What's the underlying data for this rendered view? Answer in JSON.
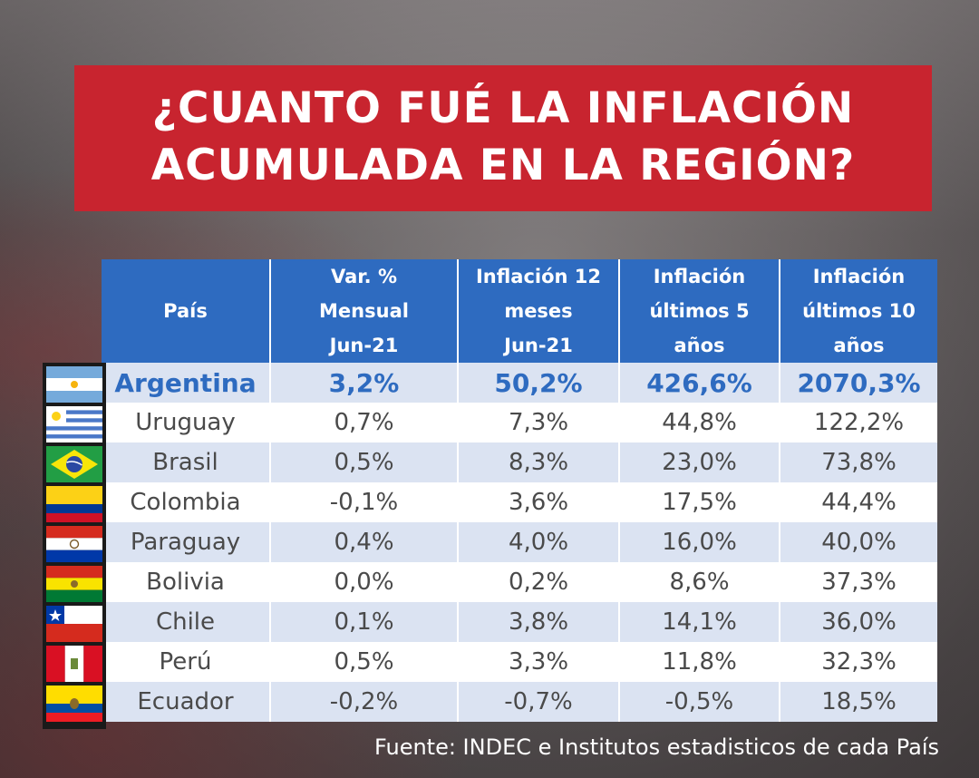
{
  "title": {
    "line1": "¿CUANTO FUÉ LA INFLACIÓN",
    "line2": "ACUMULADA EN LA REGIÓN?"
  },
  "table": {
    "headers": [
      [
        "País"
      ],
      [
        "Var. %",
        "Mensual",
        "Jun-21"
      ],
      [
        "Inflación 12",
        "meses",
        "Jun-21"
      ],
      [
        "Inflación",
        "últimos 5",
        "años"
      ],
      [
        "Inflación",
        "últimos 10",
        "años"
      ]
    ],
    "rows": [
      [
        "Argentina",
        "3,2%",
        "50,2%",
        "426,6%",
        "2070,3%"
      ],
      [
        "Uruguay",
        "0,7%",
        "7,3%",
        "44,8%",
        "122,2%"
      ],
      [
        "Brasil",
        "0,5%",
        "8,3%",
        "23,0%",
        "73,8%"
      ],
      [
        "Colombia",
        "-0,1%",
        "3,6%",
        "17,5%",
        "44,4%"
      ],
      [
        "Paraguay",
        "0,4%",
        "4,0%",
        "16,0%",
        "40,0%"
      ],
      [
        "Bolivia",
        "0,0%",
        "0,2%",
        "8,6%",
        "37,3%"
      ],
      [
        "Chile",
        "0,1%",
        "3,8%",
        "14,1%",
        "36,0%"
      ],
      [
        "Perú",
        "0,5%",
        "3,3%",
        "11,8%",
        "32,3%"
      ],
      [
        "Ecuador",
        "-0,2%",
        "-0,7%",
        "-0,5%",
        "18,5%"
      ]
    ]
  },
  "flags": [
    "argentina-flag-icon",
    "uruguay-flag-icon",
    "brazil-flag-icon",
    "colombia-flag-icon",
    "paraguay-flag-icon",
    "bolivia-flag-icon",
    "chile-flag-icon",
    "peru-flag-icon",
    "ecuador-flag-icon"
  ],
  "source": "Fuente: INDEC e Institutos estadisticos de cada País",
  "colors": {
    "title_bg": "#c8242f",
    "header_bg": "#2e6bc0",
    "row_alt": "#dbe3f2",
    "highlight_text": "#2e6bc0"
  },
  "chart_data": {
    "type": "table",
    "columns": [
      "País",
      "Var. % Mensual Jun-21",
      "Inflación 12 meses Jun-21",
      "Inflación últimos 5 años",
      "Inflación últimos 10 años"
    ],
    "categories": [
      "Argentina",
      "Uruguay",
      "Brasil",
      "Colombia",
      "Paraguay",
      "Bolivia",
      "Chile",
      "Perú",
      "Ecuador"
    ],
    "series": [
      {
        "name": "Var. % Mensual Jun-21",
        "values": [
          3.2,
          0.7,
          0.5,
          -0.1,
          0.4,
          0.0,
          0.1,
          0.5,
          -0.2
        ]
      },
      {
        "name": "Inflación 12 meses Jun-21",
        "values": [
          50.2,
          7.3,
          8.3,
          3.6,
          4.0,
          0.2,
          3.8,
          3.3,
          -0.7
        ]
      },
      {
        "name": "Inflación últimos 5 años",
        "values": [
          426.6,
          44.8,
          23.0,
          17.5,
          16.0,
          8.6,
          14.1,
          11.8,
          -0.5
        ]
      },
      {
        "name": "Inflación últimos 10 años",
        "values": [
          2070.3,
          122.2,
          73.8,
          44.4,
          40.0,
          37.3,
          36.0,
          32.3,
          18.5
        ]
      }
    ],
    "title": "¿CUANTO FUÉ LA INFLACIÓN ACUMULADA EN LA REGIÓN?"
  }
}
